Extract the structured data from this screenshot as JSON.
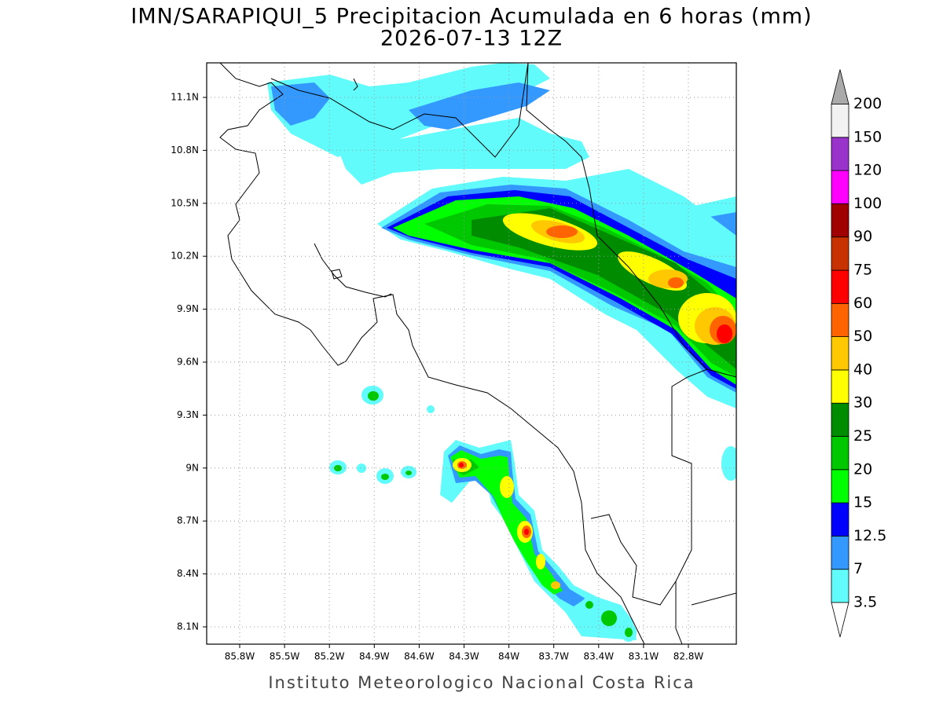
{
  "header": {
    "title": "IMN/SARAPIQUI_5 Precipitacion Acumulada en 6 horas (mm)",
    "subtitle": "2026-07-13 12Z"
  },
  "map": {
    "lat_labels": [
      "11.1N",
      "10.8N",
      "10.5N",
      "10.2N",
      "9.9N",
      "9.6N",
      "9.3N",
      "9N",
      "8.7N",
      "8.4N",
      "8.1N"
    ],
    "lon_labels": [
      "85.8W",
      "85.5W",
      "85.2W",
      "84.9W",
      "84.6W",
      "84.3W",
      "84W",
      "83.7W",
      "83.4W",
      "83.1W",
      "82.8W"
    ]
  },
  "colorbar": {
    "levels": [
      "3.5",
      "7",
      "12.5",
      "15",
      "20",
      "25",
      "30",
      "40",
      "50",
      "60",
      "75",
      "90",
      "100",
      "120",
      "150",
      "200"
    ],
    "colors": [
      "#62fbfb",
      "#3399ff",
      "#0000ff",
      "#00ff00",
      "#00c800",
      "#008c00",
      "#ffff00",
      "#ffc800",
      "#ff6400",
      "#ff0000",
      "#c83200",
      "#a00000",
      "#ff00ff",
      "#9933cc",
      "#f2f2f2"
    ],
    "below_color": "#ffffff",
    "above_color": "#aaaaaa"
  },
  "footer": "Instituto Meteorologico Nacional Costa Rica"
}
